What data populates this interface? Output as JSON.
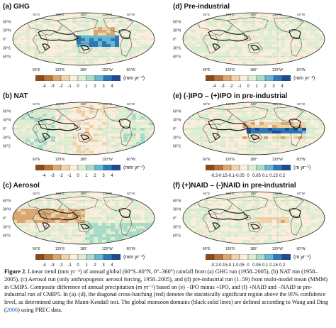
{
  "panels": [
    {
      "id": "a",
      "title": "(a) GHG",
      "unit": "(mm yr⁻¹)",
      "ticks": [
        "-4",
        "-3",
        "-2",
        "-1",
        "0",
        "1",
        "2",
        "3",
        "4"
      ],
      "scale": "mm",
      "pattern": "ghg"
    },
    {
      "id": "b",
      "title": "(b) NAT",
      "unit": "(mm yr⁻¹)",
      "ticks": [
        "-4",
        "-3",
        "-2",
        "-1",
        "0",
        "1",
        "2",
        "3",
        "4"
      ],
      "scale": "mm",
      "pattern": "nat"
    },
    {
      "id": "c",
      "title": "(c) Aerosol",
      "unit": "(mm yr⁻¹)",
      "ticks": [
        "-4",
        "-3",
        "-2",
        "-1",
        "0",
        "1",
        "2",
        "3",
        "4"
      ],
      "scale": "mm",
      "pattern": "aer"
    },
    {
      "id": "d",
      "title": "(d) Pre-industrial",
      "unit": "(mm yr⁻¹)",
      "ticks": [
        "-4",
        "-3",
        "-2",
        "-1",
        "0",
        "1",
        "2",
        "3",
        "4"
      ],
      "scale": "mm",
      "pattern": "pre"
    },
    {
      "id": "e",
      "title": "(e) (-)IPO – (+)IPO in pre-industrial",
      "unit": "(m yr⁻¹)",
      "ticks": [
        "-0.2",
        "-0.15",
        "-0.1",
        "-0.05",
        "0",
        "0.05",
        "0.1",
        "0.15",
        "0.2"
      ],
      "scale": "m",
      "pattern": "ipo"
    },
    {
      "id": "f",
      "title": "(f) (+)NAID – (-)NAID in pre-industrial",
      "unit": "(m yr⁻¹)",
      "ticks": [
        "-0.2",
        "-0.15",
        "-0.1",
        "-0.05",
        "0",
        "0.05",
        "0.1",
        "0.15",
        "0.2"
      ],
      "scale": "m",
      "pattern": "naid"
    }
  ],
  "map_labels": {
    "lat": [
      "60°N",
      "30°N",
      "0°",
      "30°S",
      "60°S"
    ],
    "lon": [
      "60°E",
      "120°E",
      "180°",
      "120°W",
      "60°W"
    ]
  },
  "colors": {
    "mm": [
      "#8c4a1c",
      "#b8743a",
      "#dca872",
      "#f0d4a8",
      "#fbeedd",
      "#ddeed2",
      "#a8dcc8",
      "#66b8d2",
      "#2e78b8",
      "#1c4a94"
    ],
    "m": [
      "#8c4a1c",
      "#b8743a",
      "#dca872",
      "#f0d4a8",
      "#fbeedd",
      "#ddeed2",
      "#a8dcc8",
      "#66b8d2",
      "#2e78b8",
      "#1c4a94"
    ]
  },
  "caption": {
    "label": "Figure 2.",
    "text": "Linear trend (mm yr⁻¹) of annual global (60°S–60°N, 0°–360°) rainfall from (a) GHG run (1958–2005), (b) NAT run (1958–2005), (c) Aerosol run (only anthropogenic aerosol forcing, 1958–2005), and (d) pre-industrial run (1–59) from multi-model mean (MMM) in CMIP5. Composite difference of annual precipitation (m yr⁻¹) based on (e) −IPO minus +IPO, and (f) +NAID and −NAID in pre-industrial run of CMIP5. In (a)–(d), the diagonal cross-hatching (red) denotes the statistically significant region above the 95% confidence level, as determined using the Mann-Kendall test. The global monsoon domains (black solid lines) are defined according to Wang and Ding (",
    "ref": "2006",
    "tail": ") using PREC data."
  }
}
